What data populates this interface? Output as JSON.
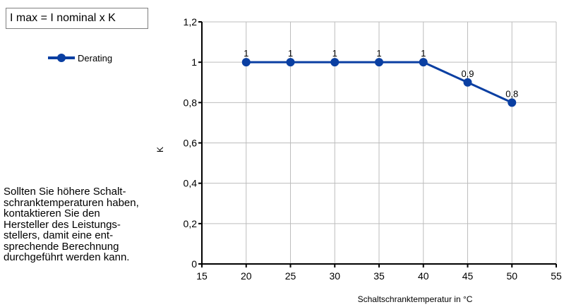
{
  "formula_text": "I max = I nominal x K",
  "note_text": "Sollten Sie höhere Schalt-\nschranktemperaturen haben,\nkontaktieren Sie den\nHersteller des Leistungs-\nstellers, damit eine ent-\nsprechende Berechnung\ndurchgeführt werden kann.",
  "colors": {
    "series": "#0a3fa2",
    "grid": "#bdbdbd",
    "axis": "#000000"
  },
  "chart_data": {
    "type": "line",
    "xlabel": "Schaltschranktemperatur in °C",
    "ylabel": "K",
    "xlim": [
      15,
      55
    ],
    "ylim": [
      0,
      1.2
    ],
    "x_ticks": [
      "15",
      "20",
      "25",
      "30",
      "35",
      "40",
      "45",
      "50",
      "55"
    ],
    "y_ticks": [
      "0",
      "0,2",
      "0,4",
      "0,6",
      "0,8",
      "1",
      "1,2"
    ],
    "grid": true,
    "legend_position": "left",
    "series": [
      {
        "name": "Derating",
        "x": [
          20,
          25,
          30,
          35,
          40,
          45,
          50
        ],
        "y": [
          1,
          1,
          1,
          1,
          1,
          0.9,
          0.8
        ],
        "labels": [
          "1",
          "1",
          "1",
          "1",
          "1",
          "0,9",
          "0,8"
        ]
      }
    ]
  }
}
